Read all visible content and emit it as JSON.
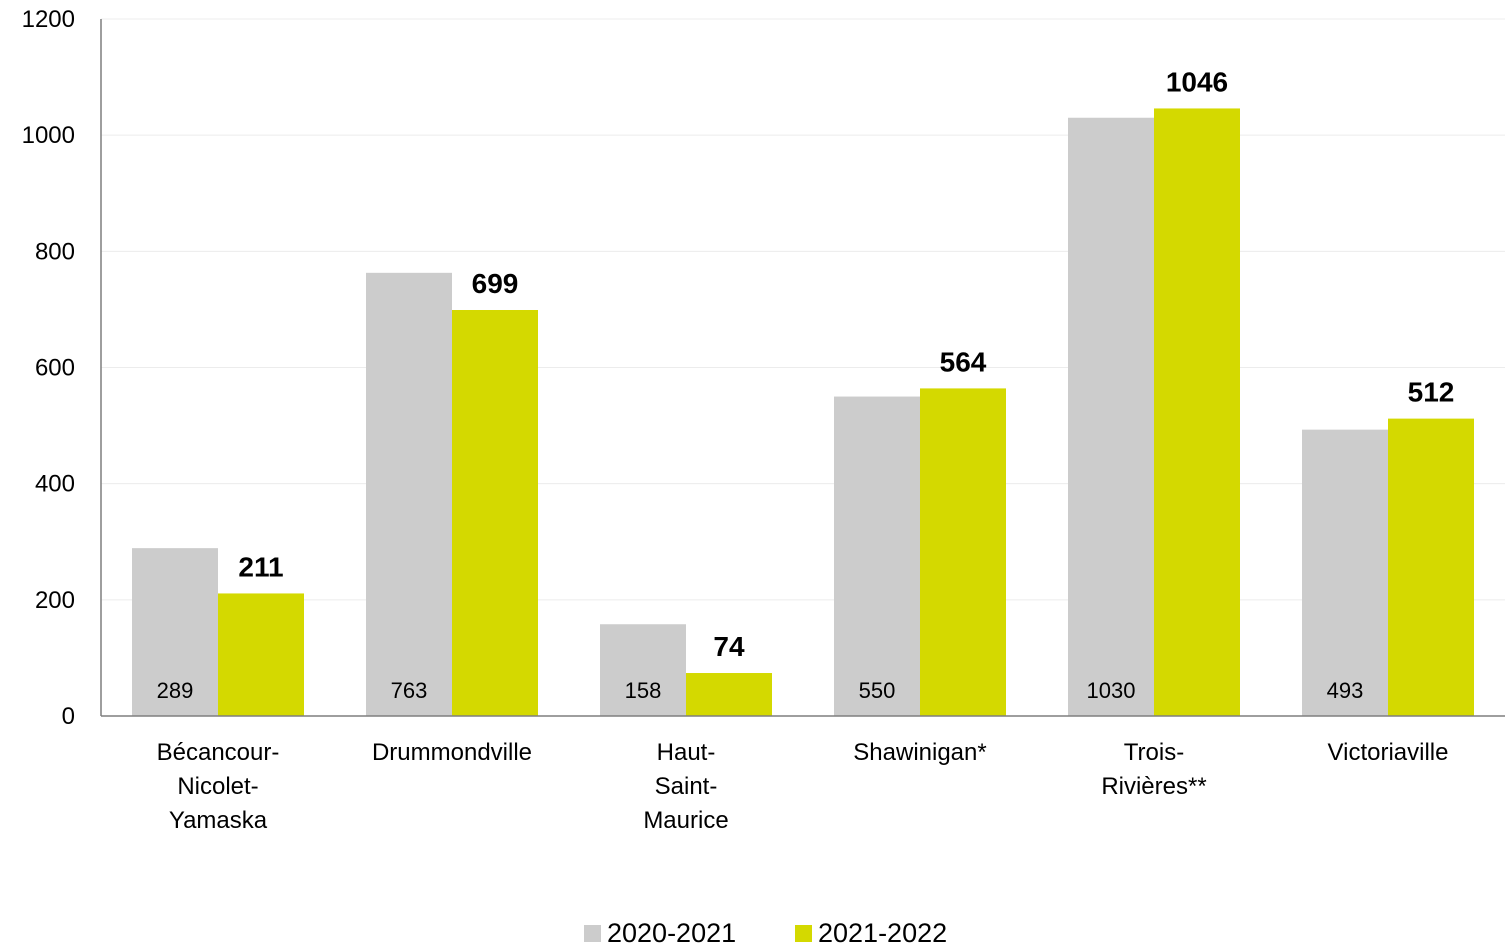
{
  "chart_data": {
    "type": "bar",
    "categories": [
      [
        "Bécancour-",
        "Nicolet-",
        "Yamaska"
      ],
      [
        "Drummondville"
      ],
      [
        "Haut-",
        "Saint-",
        "Maurice"
      ],
      [
        "Shawinigan*"
      ],
      [
        "Trois-",
        "Rivières**"
      ],
      [
        "Victoriaville"
      ]
    ],
    "series": [
      {
        "name": "2020-2021",
        "color": "#cccccc",
        "values": [
          289,
          763,
          158,
          550,
          1030,
          493
        ],
        "label_style": "inside-bottom"
      },
      {
        "name": "2021-2022",
        "color": "#d4d900",
        "values": [
          211,
          699,
          74,
          564,
          1046,
          512
        ],
        "label_style": "top-bold"
      }
    ],
    "ylim": [
      0,
      1200
    ],
    "yticks": [
      0,
      200,
      400,
      600,
      800,
      1000,
      1200
    ],
    "grid": true,
    "legend_position": "bottom"
  }
}
